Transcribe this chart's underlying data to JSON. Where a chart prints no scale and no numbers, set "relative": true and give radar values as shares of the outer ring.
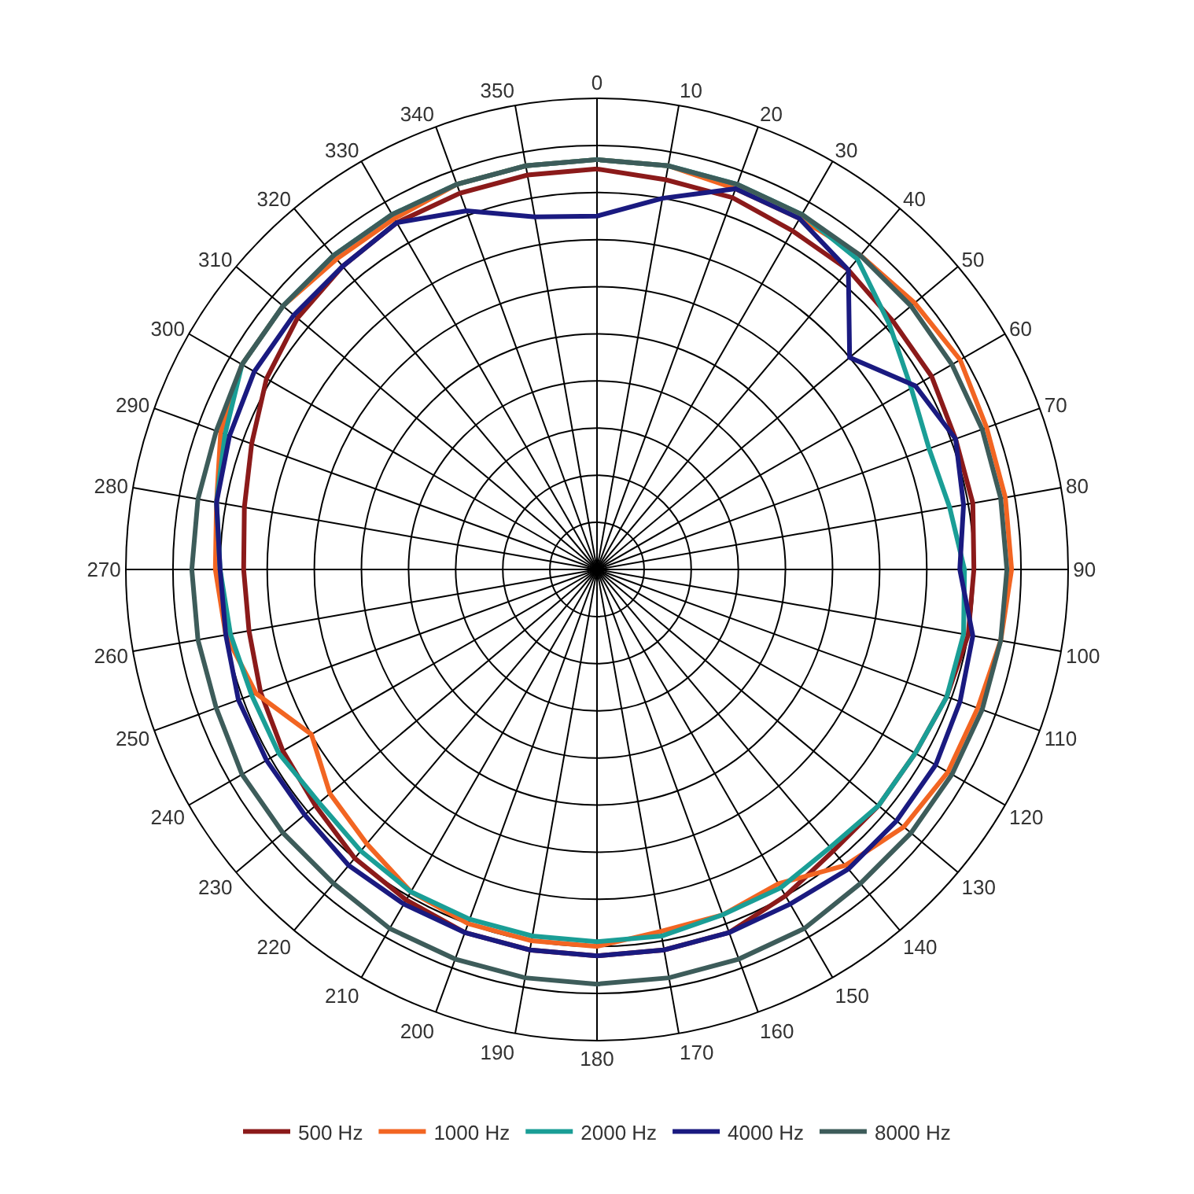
{
  "chart_data": {
    "type": "radar",
    "relative": true,
    "grid": true,
    "legend": "bottom",
    "marker": "none",
    "line_style": "solid",
    "categories": [
      "0",
      "10",
      "20",
      "30",
      "40",
      "50",
      "60",
      "70",
      "80",
      "90",
      "100",
      "110",
      "120",
      "130",
      "140",
      "150",
      "160",
      "170",
      "180",
      "190",
      "200",
      "210",
      "220",
      "230",
      "240",
      "250",
      "260",
      "270",
      "280",
      "290",
      "300",
      "310",
      "320",
      "330",
      "340",
      "350"
    ],
    "series": [
      {
        "name": "500 Hz",
        "color": "#8b1a1a",
        "values": [
          0.85,
          0.84,
          0.84,
          0.83,
          0.83,
          0.82,
          0.82,
          0.81,
          0.81,
          0.8,
          0.8,
          0.79,
          0.78,
          0.78,
          0.78,
          0.8,
          0.82,
          0.82,
          0.82,
          0.82,
          0.82,
          0.81,
          0.8,
          0.78,
          0.77,
          0.76,
          0.75,
          0.75,
          0.76,
          0.78,
          0.81,
          0.83,
          0.84,
          0.85,
          0.85,
          0.85
        ]
      },
      {
        "name": "1000 Hz",
        "color": "#f26522",
        "values": [
          0.87,
          0.87,
          0.86,
          0.86,
          0.87,
          0.88,
          0.89,
          0.88,
          0.88,
          0.88,
          0.87,
          0.86,
          0.86,
          0.85,
          0.82,
          0.77,
          0.78,
          0.78,
          0.8,
          0.8,
          0.8,
          0.79,
          0.76,
          0.74,
          0.7,
          0.77,
          0.8,
          0.81,
          0.82,
          0.85,
          0.87,
          0.87,
          0.86,
          0.86,
          0.87,
          0.87
        ]
      },
      {
        "name": "2000 Hz",
        "color": "#1a9e96",
        "values": [
          0.87,
          0.87,
          0.87,
          0.87,
          0.86,
          0.81,
          0.77,
          0.75,
          0.76,
          0.78,
          0.79,
          0.79,
          0.78,
          0.78,
          0.77,
          0.78,
          0.78,
          0.79,
          0.79,
          0.79,
          0.79,
          0.79,
          0.78,
          0.77,
          0.78,
          0.78,
          0.79,
          0.8,
          0.82,
          0.84,
          0.87,
          0.87,
          0.87,
          0.87,
          0.87,
          0.87
        ]
      },
      {
        "name": "4000 Hz",
        "color": "#1a1a80",
        "values": [
          0.75,
          0.8,
          0.86,
          0.86,
          0.83,
          0.7,
          0.78,
          0.81,
          0.79,
          0.77,
          0.81,
          0.82,
          0.83,
          0.83,
          0.83,
          0.82,
          0.82,
          0.82,
          0.82,
          0.82,
          0.82,
          0.82,
          0.82,
          0.81,
          0.81,
          0.81,
          0.8,
          0.8,
          0.82,
          0.83,
          0.84,
          0.84,
          0.84,
          0.85,
          0.81,
          0.76
        ]
      },
      {
        "name": "8000 Hz",
        "color": "#3d5c5a",
        "values": [
          0.87,
          0.87,
          0.87,
          0.87,
          0.87,
          0.87,
          0.87,
          0.87,
          0.87,
          0.87,
          0.87,
          0.87,
          0.87,
          0.87,
          0.87,
          0.88,
          0.88,
          0.88,
          0.88,
          0.88,
          0.88,
          0.88,
          0.87,
          0.87,
          0.87,
          0.86,
          0.86,
          0.86,
          0.86,
          0.86,
          0.87,
          0.87,
          0.87,
          0.87,
          0.87,
          0.87
        ]
      }
    ]
  }
}
